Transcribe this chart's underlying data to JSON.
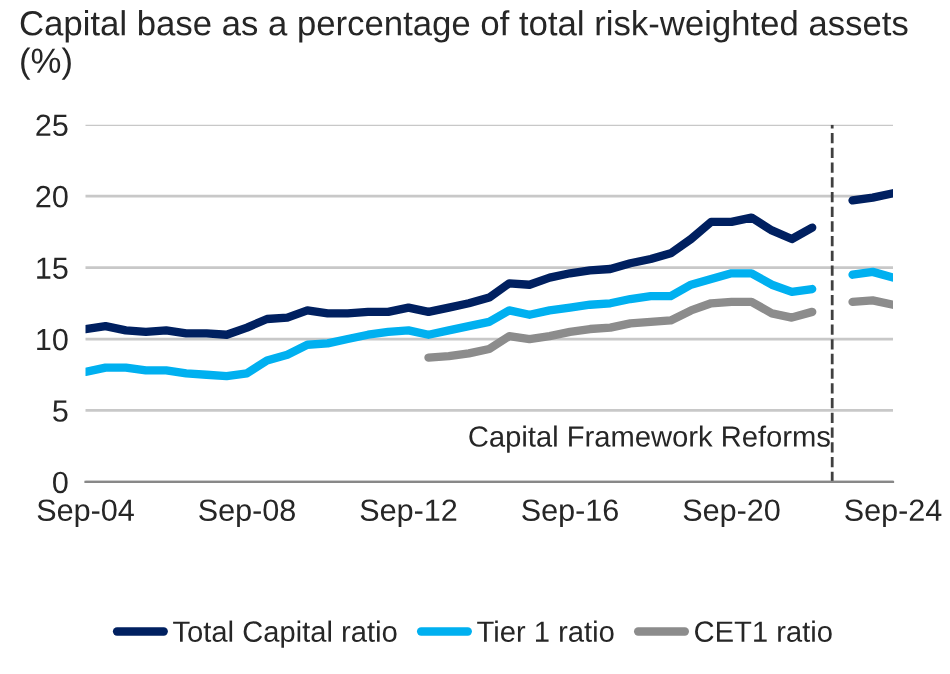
{
  "chart_data": {
    "type": "line",
    "title": "Capital base as a percentage of total risk-weighted assets (%)",
    "x": [
      "2004-09",
      "2005-03",
      "2005-09",
      "2006-03",
      "2006-09",
      "2007-03",
      "2007-09",
      "2008-03",
      "2008-09",
      "2009-03",
      "2009-09",
      "2010-03",
      "2010-09",
      "2011-03",
      "2011-09",
      "2012-03",
      "2012-09",
      "2013-03",
      "2013-09",
      "2014-03",
      "2014-09",
      "2015-03",
      "2015-09",
      "2016-03",
      "2016-09",
      "2017-03",
      "2017-09",
      "2018-03",
      "2018-09",
      "2019-03",
      "2019-09",
      "2020-03",
      "2020-09",
      "2021-03",
      "2021-09",
      "2022-03",
      "2022-09",
      "2023-03",
      "2023-09",
      "2024-03",
      "2024-09"
    ],
    "series": [
      {
        "name": "Total Capital ratio",
        "color": "#002060",
        "values": [
          10.7,
          10.9,
          10.6,
          10.5,
          10.6,
          10.4,
          10.4,
          10.3,
          10.8,
          11.4,
          11.5,
          12.0,
          11.8,
          11.8,
          11.9,
          11.9,
          12.2,
          11.9,
          12.2,
          12.5,
          12.9,
          13.9,
          13.8,
          14.3,
          14.6,
          14.8,
          14.9,
          15.3,
          15.6,
          16.0,
          17.0,
          18.2,
          18.2,
          18.5,
          17.6,
          17.0,
          17.8,
          null,
          19.7,
          19.9,
          20.2
        ]
      },
      {
        "name": "Tier 1 ratio",
        "color": "#00b0f0",
        "values": [
          7.7,
          8.0,
          8.0,
          7.8,
          7.8,
          7.6,
          7.5,
          7.4,
          7.6,
          8.5,
          8.9,
          9.6,
          9.7,
          10.0,
          10.3,
          10.5,
          10.6,
          10.3,
          10.6,
          10.9,
          11.2,
          12.0,
          11.7,
          12.0,
          12.2,
          12.4,
          12.5,
          12.8,
          13.0,
          13.0,
          13.8,
          14.2,
          14.6,
          14.6,
          13.8,
          13.3,
          13.5,
          null,
          14.5,
          14.7,
          14.3
        ]
      },
      {
        "name": "CET1 ratio",
        "color": "#8c8c8c",
        "values": [
          null,
          null,
          null,
          null,
          null,
          null,
          null,
          null,
          null,
          null,
          null,
          null,
          null,
          null,
          null,
          null,
          null,
          8.7,
          8.8,
          9.0,
          9.3,
          10.2,
          10.0,
          10.2,
          10.5,
          10.7,
          10.8,
          11.1,
          11.2,
          11.3,
          12.0,
          12.5,
          12.6,
          12.6,
          11.8,
          11.5,
          11.9,
          null,
          12.6,
          12.7,
          12.4
        ]
      }
    ],
    "xlim": [
      "2004-09",
      "2024-09"
    ],
    "xticks": [
      {
        "value": "2004-09",
        "label": "Sep-04"
      },
      {
        "value": "2008-09",
        "label": "Sep-08"
      },
      {
        "value": "2012-09",
        "label": "Sep-12"
      },
      {
        "value": "2016-09",
        "label": "Sep-16"
      },
      {
        "value": "2020-09",
        "label": "Sep-20"
      },
      {
        "value": "2024-09",
        "label": "Sep-24"
      }
    ],
    "ylim": [
      0,
      25
    ],
    "yticks": [
      0,
      5,
      10,
      15,
      20,
      25
    ],
    "ref_lines": [
      {
        "axis": "x",
        "value": "2023-03",
        "label": "Capital Framework Reforms",
        "color": "#404040",
        "line_style": "dashed"
      }
    ],
    "grid": "y",
    "legend": "bottom",
    "marker": "none",
    "line_style": "solid"
  }
}
